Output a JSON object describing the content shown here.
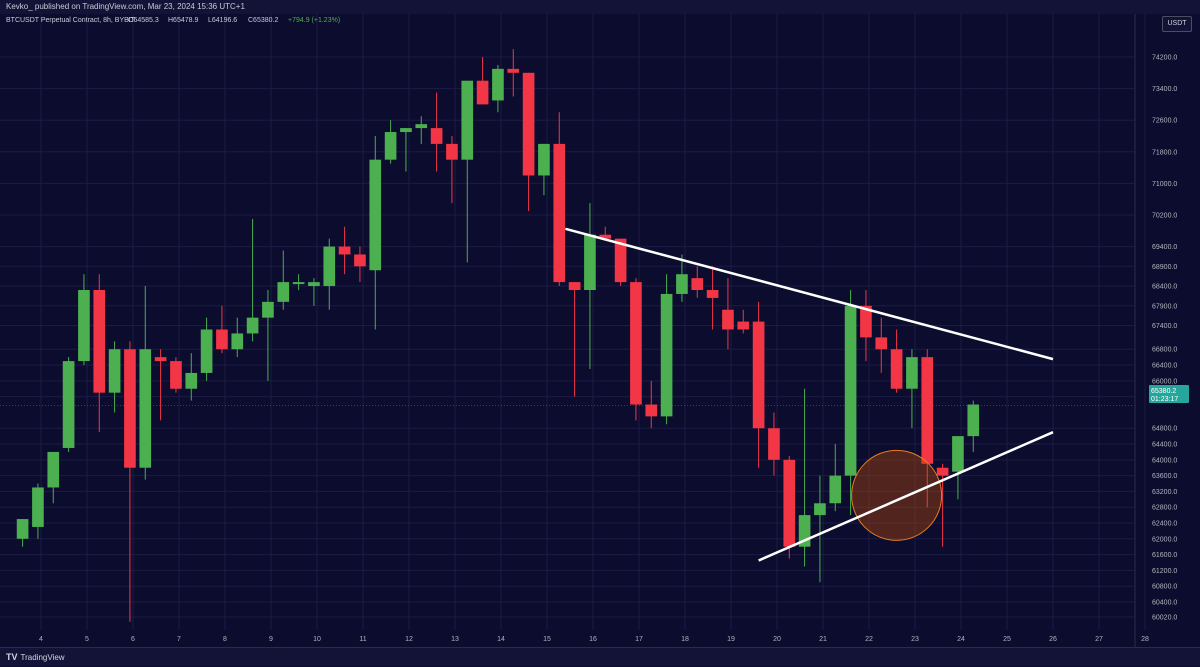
{
  "header": {
    "published": "Kevko_ published on TradingView.com, Mar 23, 2024 15:36 UTC+1"
  },
  "legend": {
    "symbol": "BTCUSDT Perpetual Contract, 8h, BYBIT",
    "open": "O64585.3",
    "high": "H65478.9",
    "low": "L64196.6",
    "close": "C65380.2",
    "change": "+794.9 (+1.23%)"
  },
  "currency": "USDT",
  "price_tag": {
    "price": "65380.2",
    "countdown": "01:23:17"
  },
  "footer": {
    "brand": "TradingView"
  },
  "colors": {
    "up": "#4caf50",
    "down": "#f23645",
    "background": "#0c0c2e",
    "trendline": "#ffffff",
    "highlight": "#d35400"
  },
  "chart_data": {
    "type": "candlestick",
    "y_ticks": [
      74200,
      73400,
      72600,
      71800,
      71000,
      70200,
      69400,
      68900,
      68400,
      67900,
      67400,
      66800,
      66400,
      66000,
      65600,
      64800,
      64400,
      64000,
      63600,
      63200,
      62800,
      62400,
      62000,
      61600,
      61200,
      60800,
      60400,
      60020
    ],
    "x_ticks": [
      "4",
      "5",
      "6",
      "7",
      "8",
      "9",
      "10",
      "11",
      "12",
      "13",
      "14",
      "15",
      "16",
      "17",
      "18",
      "19",
      "20",
      "21",
      "22",
      "23",
      "24",
      "25",
      "26",
      "27",
      "28"
    ],
    "candles": [
      {
        "o": 62000,
        "h": 62500,
        "l": 61800,
        "c": 62500
      },
      {
        "o": 62300,
        "h": 63400,
        "l": 62000,
        "c": 63300
      },
      {
        "o": 63300,
        "h": 64100,
        "l": 62900,
        "c": 64200
      },
      {
        "o": 64300,
        "h": 66600,
        "l": 64200,
        "c": 66500
      },
      {
        "o": 66500,
        "h": 68700,
        "l": 66400,
        "c": 68300
      },
      {
        "o": 68300,
        "h": 68700,
        "l": 64700,
        "c": 65700
      },
      {
        "o": 65700,
        "h": 67000,
        "l": 65200,
        "c": 66800
      },
      {
        "o": 66800,
        "h": 67000,
        "l": 59900,
        "c": 63800
      },
      {
        "o": 63800,
        "h": 68400,
        "l": 63500,
        "c": 66800
      },
      {
        "o": 66600,
        "h": 66800,
        "l": 65000,
        "c": 66500
      },
      {
        "o": 66500,
        "h": 66600,
        "l": 65700,
        "c": 65800
      },
      {
        "o": 65800,
        "h": 66700,
        "l": 65500,
        "c": 66200
      },
      {
        "o": 66200,
        "h": 67600,
        "l": 66000,
        "c": 67300
      },
      {
        "o": 67300,
        "h": 67900,
        "l": 66700,
        "c": 66800
      },
      {
        "o": 66800,
        "h": 67600,
        "l": 66600,
        "c": 67200
      },
      {
        "o": 67200,
        "h": 70100,
        "l": 67000,
        "c": 67600
      },
      {
        "o": 67600,
        "h": 68300,
        "l": 66000,
        "c": 68000
      },
      {
        "o": 68000,
        "h": 69300,
        "l": 67800,
        "c": 68500
      },
      {
        "o": 68500,
        "h": 68700,
        "l": 68300,
        "c": 68500
      },
      {
        "o": 68400,
        "h": 68600,
        "l": 67900,
        "c": 68500
      },
      {
        "o": 68400,
        "h": 69600,
        "l": 67800,
        "c": 69400
      },
      {
        "o": 69400,
        "h": 69900,
        "l": 68700,
        "c": 69200
      },
      {
        "o": 69200,
        "h": 69400,
        "l": 68500,
        "c": 68900
      },
      {
        "o": 68800,
        "h": 72200,
        "l": 67300,
        "c": 71600
      },
      {
        "o": 71600,
        "h": 72600,
        "l": 71500,
        "c": 72300
      },
      {
        "o": 72300,
        "h": 72400,
        "l": 71300,
        "c": 72400
      },
      {
        "o": 72400,
        "h": 72700,
        "l": 72000,
        "c": 72500
      },
      {
        "o": 72400,
        "h": 73300,
        "l": 71300,
        "c": 72000
      },
      {
        "o": 72000,
        "h": 72200,
        "l": 70500,
        "c": 71600
      },
      {
        "o": 71600,
        "h": 73600,
        "l": 69000,
        "c": 73600
      },
      {
        "o": 73600,
        "h": 74200,
        "l": 73000,
        "c": 73000
      },
      {
        "o": 73100,
        "h": 74000,
        "l": 72800,
        "c": 73900
      },
      {
        "o": 73900,
        "h": 74400,
        "l": 73200,
        "c": 73800
      },
      {
        "o": 73800,
        "h": 73800,
        "l": 70300,
        "c": 71200
      },
      {
        "o": 71200,
        "h": 72000,
        "l": 70700,
        "c": 72000
      },
      {
        "o": 72000,
        "h": 72800,
        "l": 68400,
        "c": 68500
      },
      {
        "o": 68500,
        "h": 68500,
        "l": 65600,
        "c": 68300
      },
      {
        "o": 68300,
        "h": 70500,
        "l": 66300,
        "c": 69700
      },
      {
        "o": 69700,
        "h": 69900,
        "l": 69600,
        "c": 69600
      },
      {
        "o": 69600,
        "h": 69600,
        "l": 68400,
        "c": 68500
      },
      {
        "o": 68500,
        "h": 68600,
        "l": 65000,
        "c": 65400
      },
      {
        "o": 65400,
        "h": 66000,
        "l": 64800,
        "c": 65100
      },
      {
        "o": 65100,
        "h": 68700,
        "l": 64900,
        "c": 68200
      },
      {
        "o": 68200,
        "h": 69200,
        "l": 68000,
        "c": 68700
      },
      {
        "o": 68600,
        "h": 68900,
        "l": 68100,
        "c": 68300
      },
      {
        "o": 68300,
        "h": 68900,
        "l": 67300,
        "c": 68100
      },
      {
        "o": 67800,
        "h": 68600,
        "l": 66800,
        "c": 67300
      },
      {
        "o": 67500,
        "h": 67800,
        "l": 67200,
        "c": 67300
      },
      {
        "o": 67500,
        "h": 68000,
        "l": 63800,
        "c": 64800
      },
      {
        "o": 64800,
        "h": 65200,
        "l": 63600,
        "c": 64000
      },
      {
        "o": 64000,
        "h": 64100,
        "l": 61500,
        "c": 61800
      },
      {
        "o": 61800,
        "h": 65800,
        "l": 61300,
        "c": 62600
      },
      {
        "o": 62600,
        "h": 63600,
        "l": 60900,
        "c": 62900
      },
      {
        "o": 62900,
        "h": 64400,
        "l": 62700,
        "c": 63600
      },
      {
        "o": 63600,
        "h": 68300,
        "l": 62600,
        "c": 67900
      },
      {
        "o": 67900,
        "h": 68300,
        "l": 66500,
        "c": 67100
      },
      {
        "o": 67100,
        "h": 67600,
        "l": 66200,
        "c": 66800
      },
      {
        "o": 66800,
        "h": 67300,
        "l": 65700,
        "c": 65800
      },
      {
        "o": 65800,
        "h": 66800,
        "l": 64800,
        "c": 66600
      },
      {
        "o": 66600,
        "h": 66800,
        "l": 62800,
        "c": 63900
      },
      {
        "o": 63800,
        "h": 63900,
        "l": 61800,
        "c": 63600
      },
      {
        "o": 63700,
        "h": 64600,
        "l": 63000,
        "c": 64600
      },
      {
        "o": 64600,
        "h": 65500,
        "l": 64200,
        "c": 65400
      }
    ],
    "trendlines": [
      {
        "from": {
          "t": 15.4,
          "p": 69850
        },
        "to": {
          "t": 26.0,
          "p": 66550
        }
      },
      {
        "from": {
          "t": 19.6,
          "p": 61450
        },
        "to": {
          "t": 26.0,
          "p": 64700
        }
      }
    ],
    "highlight_circle": {
      "t": 22.6,
      "p": 63100
    },
    "current_price": 65380.2
  }
}
